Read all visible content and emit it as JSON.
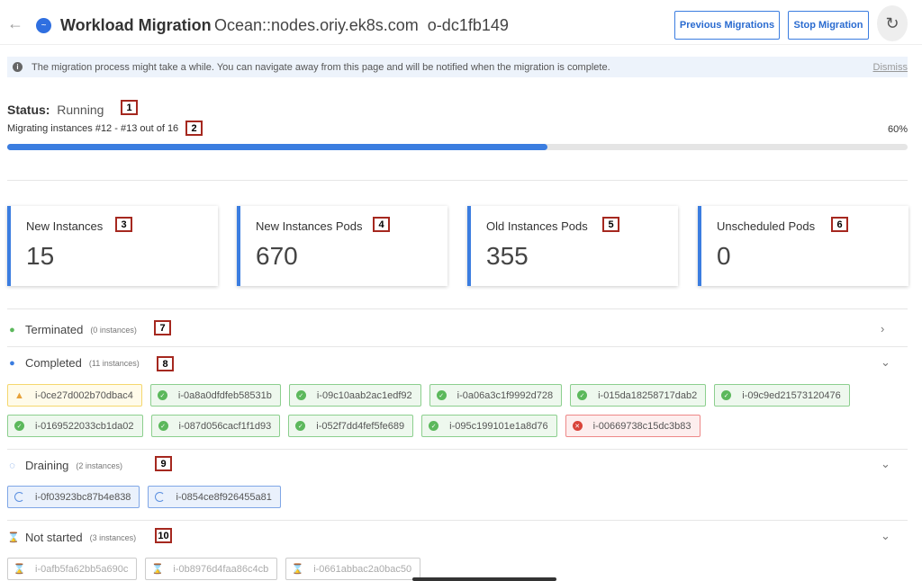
{
  "header": {
    "title": "Workload Migration",
    "cluster": "Ocean::nodes.oriy.ek8s.com",
    "id": "o-dc1fb149",
    "previous_label": "Previous Migrations",
    "stop_label": "Stop Migration"
  },
  "banner": {
    "text": "The migration process might take a while. You can navigate away from this page and will be notified when the migration is complete.",
    "dismiss": "Dismiss"
  },
  "status": {
    "label": "Status:",
    "value": "Running",
    "progress_text": "Migrating instances #12 - #13 out of 16",
    "percent_label": "60%",
    "percent": 60
  },
  "annotations": [
    "1",
    "2",
    "3",
    "4",
    "5",
    "6",
    "7",
    "8",
    "9",
    "10"
  ],
  "cards": [
    {
      "label": "New Instances",
      "value": "15"
    },
    {
      "label": "New Instances Pods",
      "value": "670"
    },
    {
      "label": "Old Instances Pods",
      "value": "355"
    },
    {
      "label": "Unscheduled Pods",
      "value": "0"
    }
  ],
  "sections": {
    "terminated": {
      "label": "Terminated",
      "count": "(0 instances)"
    },
    "completed": {
      "label": "Completed",
      "count": "(11 instances)",
      "instances": [
        {
          "id": "i-0ce27d002b70dbac4",
          "state": "warning"
        },
        {
          "id": "i-0a8a0dfdfeb58531b",
          "state": "success"
        },
        {
          "id": "i-09c10aab2ac1edf92",
          "state": "success"
        },
        {
          "id": "i-0a06a3c1f9992d728",
          "state": "success"
        },
        {
          "id": "i-015da18258717dab2",
          "state": "success"
        },
        {
          "id": "i-09c9ed21573120476",
          "state": "success"
        },
        {
          "id": "i-0169522033cb1da02",
          "state": "success"
        },
        {
          "id": "i-087d056cacf1f1d93",
          "state": "success"
        },
        {
          "id": "i-052f7dd4fef5fe689",
          "state": "success"
        },
        {
          "id": "i-095c199101e1a8d76",
          "state": "success"
        },
        {
          "id": "i-00669738c15dc3b83",
          "state": "error"
        }
      ]
    },
    "draining": {
      "label": "Draining",
      "count": "(2 instances)",
      "instances": [
        {
          "id": "i-0f03923bc87b4e838"
        },
        {
          "id": "i-0854ce8f926455a81"
        }
      ]
    },
    "not_started": {
      "label": "Not started",
      "count": "(3 instances)",
      "instances": [
        {
          "id": "i-0afb5fa62bb5a690c"
        },
        {
          "id": "i-0b8976d4faa86c4cb"
        },
        {
          "id": "i-0661abbac2a0bac50"
        }
      ]
    }
  },
  "colors": {
    "accent": "#3b7de0",
    "success": "#5cb85c",
    "error": "#d9443a",
    "warning": "#e8a23a"
  }
}
